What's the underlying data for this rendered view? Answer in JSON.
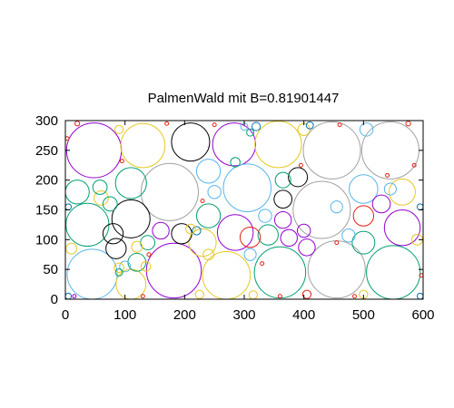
{
  "chart_data": {
    "type": "scatter",
    "title": "PalmenWald mit B=0.81901447",
    "xlabel": "",
    "ylabel": "",
    "xlim": [
      0,
      600
    ],
    "ylim": [
      0,
      300
    ],
    "x_ticks": [
      0,
      100,
      200,
      300,
      400,
      500,
      600
    ],
    "y_ticks": [
      0,
      50,
      100,
      150,
      200,
      250,
      300
    ],
    "grid": false,
    "legend": "none",
    "colors": {
      "purple": "#9400d3",
      "teal": "#009e73",
      "sky": "#56b4e9",
      "yellow": "#e6c820",
      "blue": "#0072b2",
      "red": "#e51e10",
      "black": "#000000",
      "gray": "#a0a0a0"
    },
    "circles": [
      {
        "x": 48,
        "y": 250,
        "r": 46,
        "color": "purple"
      },
      {
        "x": 130,
        "y": 258,
        "r": 37,
        "color": "yellow"
      },
      {
        "x": 210,
        "y": 264,
        "r": 32,
        "color": "black"
      },
      {
        "x": 283,
        "y": 260,
        "r": 36,
        "color": "purple"
      },
      {
        "x": 357,
        "y": 260,
        "r": 39,
        "color": "yellow"
      },
      {
        "x": 447,
        "y": 250,
        "r": 48,
        "color": "gray"
      },
      {
        "x": 545,
        "y": 250,
        "r": 48,
        "color": "gray"
      },
      {
        "x": 175,
        "y": 180,
        "r": 48,
        "color": "gray"
      },
      {
        "x": 305,
        "y": 187,
        "r": 40,
        "color": "sky"
      },
      {
        "x": 430,
        "y": 150,
        "r": 48,
        "color": "gray"
      },
      {
        "x": 37,
        "y": 125,
        "r": 36,
        "color": "teal"
      },
      {
        "x": 110,
        "y": 135,
        "r": 32,
        "color": "black"
      },
      {
        "x": 45,
        "y": 42,
        "r": 42,
        "color": "sky"
      },
      {
        "x": 182,
        "y": 48,
        "r": 46,
        "color": "purple"
      },
      {
        "x": 270,
        "y": 40,
        "r": 40,
        "color": "yellow"
      },
      {
        "x": 360,
        "y": 45,
        "r": 43,
        "color": "teal"
      },
      {
        "x": 455,
        "y": 50,
        "r": 48,
        "color": "gray"
      },
      {
        "x": 550,
        "y": 45,
        "r": 45,
        "color": "teal"
      },
      {
        "x": 110,
        "y": 195,
        "r": 26,
        "color": "teal"
      },
      {
        "x": 20,
        "y": 180,
        "r": 20,
        "color": "teal"
      },
      {
        "x": 240,
        "y": 215,
        "r": 20,
        "color": "sky"
      },
      {
        "x": 240,
        "y": 140,
        "r": 20,
        "color": "teal"
      },
      {
        "x": 285,
        "y": 112,
        "r": 30,
        "color": "purple"
      },
      {
        "x": 230,
        "y": 95,
        "r": 23,
        "color": "yellow"
      },
      {
        "x": 110,
        "y": 25,
        "r": 25,
        "color": "yellow"
      },
      {
        "x": 500,
        "y": 185,
        "r": 24,
        "color": "sky"
      },
      {
        "x": 565,
        "y": 180,
        "r": 22,
        "color": "yellow"
      },
      {
        "x": 565,
        "y": 120,
        "r": 30,
        "color": "purple"
      },
      {
        "x": 500,
        "y": 95,
        "r": 19,
        "color": "teal"
      },
      {
        "x": 390,
        "y": 205,
        "r": 16,
        "color": "black"
      },
      {
        "x": 365,
        "y": 168,
        "r": 15,
        "color": "black"
      },
      {
        "x": 365,
        "y": 200,
        "r": 13,
        "color": "teal"
      },
      {
        "x": 365,
        "y": 133,
        "r": 14,
        "color": "purple"
      },
      {
        "x": 340,
        "y": 108,
        "r": 17,
        "color": "teal"
      },
      {
        "x": 310,
        "y": 104,
        "r": 17,
        "color": "red"
      },
      {
        "x": 375,
        "y": 103,
        "r": 14,
        "color": "purple"
      },
      {
        "x": 405,
        "y": 87,
        "r": 14,
        "color": "purple"
      },
      {
        "x": 500,
        "y": 140,
        "r": 17,
        "color": "red"
      },
      {
        "x": 530,
        "y": 160,
        "r": 15,
        "color": "purple"
      },
      {
        "x": 80,
        "y": 110,
        "r": 17,
        "color": "black"
      },
      {
        "x": 195,
        "y": 110,
        "r": 17,
        "color": "black"
      },
      {
        "x": 160,
        "y": 115,
        "r": 14,
        "color": "purple"
      },
      {
        "x": 138,
        "y": 95,
        "r": 12,
        "color": "teal"
      },
      {
        "x": 85,
        "y": 85,
        "r": 17,
        "color": "black"
      },
      {
        "x": 120,
        "y": 62,
        "r": 15,
        "color": "teal"
      },
      {
        "x": 60,
        "y": 170,
        "r": 12,
        "color": "yellow"
      },
      {
        "x": 75,
        "y": 160,
        "r": 12,
        "color": "teal"
      },
      {
        "x": 58,
        "y": 188,
        "r": 12,
        "color": "teal"
      },
      {
        "x": 335,
        "y": 140,
        "r": 11,
        "color": "sky"
      },
      {
        "x": 400,
        "y": 115,
        "r": 11,
        "color": "purple"
      },
      {
        "x": 475,
        "y": 107,
        "r": 11,
        "color": "sky"
      },
      {
        "x": 455,
        "y": 155,
        "r": 10,
        "color": "sky"
      },
      {
        "x": 310,
        "y": 75,
        "r": 10,
        "color": "sky"
      },
      {
        "x": 250,
        "y": 180,
        "r": 11,
        "color": "sky"
      },
      {
        "x": 545,
        "y": 185,
        "r": 10,
        "color": "sky"
      },
      {
        "x": 505,
        "y": 285,
        "r": 11,
        "color": "sky"
      },
      {
        "x": 400,
        "y": 285,
        "r": 10,
        "color": "yellow"
      },
      {
        "x": 120,
        "y": 88,
        "r": 9,
        "color": "yellow"
      },
      {
        "x": 100,
        "y": 55,
        "r": 9,
        "color": "sky"
      },
      {
        "x": 90,
        "y": 53,
        "r": 8,
        "color": "yellow"
      },
      {
        "x": 135,
        "y": 55,
        "r": 8,
        "color": "yellow"
      },
      {
        "x": 240,
        "y": 75,
        "r": 9,
        "color": "yellow"
      },
      {
        "x": 220,
        "y": 115,
        "r": 7,
        "color": "blue"
      },
      {
        "x": 210,
        "y": 118,
        "r": 8,
        "color": "yellow"
      },
      {
        "x": 10,
        "y": 85,
        "r": 9,
        "color": "yellow"
      },
      {
        "x": 590,
        "y": 100,
        "r": 9,
        "color": "yellow"
      },
      {
        "x": 90,
        "y": 285,
        "r": 7,
        "color": "yellow"
      },
      {
        "x": 320,
        "y": 290,
        "r": 7,
        "color": "blue"
      },
      {
        "x": 410,
        "y": 292,
        "r": 6,
        "color": "blue"
      },
      {
        "x": 300,
        "y": 290,
        "r": 6,
        "color": "sky"
      },
      {
        "x": 310,
        "y": 280,
        "r": 6,
        "color": "teal"
      },
      {
        "x": 285,
        "y": 230,
        "r": 8,
        "color": "teal"
      },
      {
        "x": 225,
        "y": 8,
        "r": 7,
        "color": "yellow"
      },
      {
        "x": 315,
        "y": 7,
        "r": 7,
        "color": "yellow"
      },
      {
        "x": 405,
        "y": 8,
        "r": 7,
        "color": "red"
      },
      {
        "x": 500,
        "y": 8,
        "r": 7,
        "color": "yellow"
      },
      {
        "x": 90,
        "y": 45,
        "r": 6,
        "color": "teal"
      },
      {
        "x": 5,
        "y": 5,
        "r": 5,
        "color": "blue"
      },
      {
        "x": 595,
        "y": 5,
        "r": 5,
        "color": "blue"
      },
      {
        "x": 5,
        "y": 155,
        "r": 5,
        "color": "blue"
      },
      {
        "x": 595,
        "y": 155,
        "r": 5,
        "color": "blue"
      },
      {
        "x": 20,
        "y": 295,
        "r": 4,
        "color": "red"
      },
      {
        "x": 575,
        "y": 295,
        "r": 4,
        "color": "red"
      },
      {
        "x": 3,
        "y": 270,
        "r": 3,
        "color": "red"
      },
      {
        "x": 597,
        "y": 40,
        "r": 3,
        "color": "red"
      },
      {
        "x": 15,
        "y": 5,
        "r": 3,
        "color": "purple"
      },
      {
        "x": 170,
        "y": 295,
        "r": 3,
        "color": "red"
      },
      {
        "x": 250,
        "y": 293,
        "r": 3,
        "color": "red"
      },
      {
        "x": 460,
        "y": 293,
        "r": 3,
        "color": "red"
      },
      {
        "x": 95,
        "y": 232,
        "r": 3,
        "color": "red"
      },
      {
        "x": 395,
        "y": 225,
        "r": 3,
        "color": "red"
      },
      {
        "x": 540,
        "y": 208,
        "r": 3,
        "color": "red"
      },
      {
        "x": 230,
        "y": 165,
        "r": 3,
        "color": "red"
      },
      {
        "x": 330,
        "y": 60,
        "r": 3,
        "color": "red"
      },
      {
        "x": 140,
        "y": 75,
        "r": 3,
        "color": "red"
      },
      {
        "x": 455,
        "y": 95,
        "r": 3,
        "color": "red"
      },
      {
        "x": 485,
        "y": 5,
        "r": 3,
        "color": "red"
      },
      {
        "x": 360,
        "y": 5,
        "r": 3,
        "color": "red"
      },
      {
        "x": 130,
        "y": 5,
        "r": 3,
        "color": "red"
      },
      {
        "x": 585,
        "y": 225,
        "r": 3,
        "color": "red"
      }
    ]
  }
}
